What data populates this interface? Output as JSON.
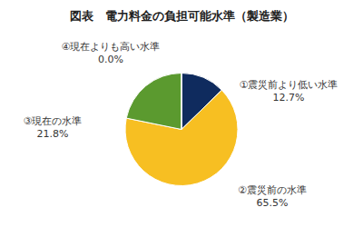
{
  "chart_data": {
    "type": "pie",
    "title": "図表　電力料金の負担可能水準（製造業）",
    "categories": [
      "①震災前より低い水準",
      "②震災前の水準",
      "③現在の水準",
      "④現在よりも高い水準"
    ],
    "values": [
      12.7,
      65.5,
      21.8,
      0.0
    ],
    "value_labels": [
      "12.7%",
      "65.5%",
      "21.8%",
      "0.0%"
    ],
    "colors": [
      "#0f2b5e",
      "#f7bf22",
      "#5b9a2f",
      "#a5a5a5"
    ],
    "data_labels": true
  }
}
